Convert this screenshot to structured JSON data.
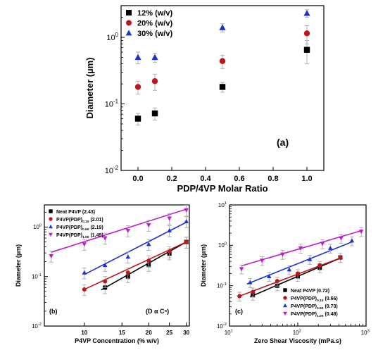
{
  "chart_data": [
    {
      "panel": "(a)",
      "type": "scatter",
      "xlabel": "PDP/4VP Molar Ratio",
      "ylabel": "Diameter (µm)",
      "xlim": [
        -0.1,
        1.1
      ],
      "ylim": [
        0.01,
        3
      ],
      "yscale": "log",
      "xticks": [
        "0.0",
        "0.2",
        "0.4",
        "0.6",
        "0.8",
        "1.0"
      ],
      "yticks": [
        "10⁻²",
        "10⁻¹",
        "10⁰"
      ],
      "legend_position": "top-left",
      "series": [
        {
          "name": "12% (w/v)",
          "marker": "square",
          "color": "#000000",
          "x": [
            0.0,
            0.1,
            0.5,
            1.0
          ],
          "y": [
            0.06,
            0.072,
            0.18,
            0.65
          ],
          "err": [
            0.012,
            0.015,
            0.03,
            0.25
          ]
        },
        {
          "name": "20% (w/v)",
          "marker": "circle",
          "color": "#c0161b",
          "x": [
            0.0,
            0.1,
            0.5,
            1.0
          ],
          "y": [
            0.18,
            0.22,
            0.44,
            1.15
          ],
          "err": [
            0.04,
            0.06,
            0.1,
            0.35
          ]
        },
        {
          "name": "30% (w/v)",
          "marker": "triangle",
          "color": "#1c34d0",
          "x": [
            0.0,
            0.1,
            0.5,
            1.0
          ],
          "y": [
            0.5,
            0.5,
            1.4,
            2.3
          ],
          "err": [
            0.1,
            0.08,
            0.2,
            0.3
          ]
        }
      ]
    },
    {
      "panel": "(b)",
      "type": "scatter",
      "xlabel": "P4VP Concentration (% w/v)",
      "ylabel": "Diameter (µm)",
      "xscale": "log",
      "yscale": "log",
      "xlim": [
        6.5,
        31
      ],
      "ylim": [
        0.01,
        2.8
      ],
      "xticks": [
        "10",
        "15",
        "20",
        "25",
        "30"
      ],
      "yticks": [
        "10⁻²",
        "10⁻¹",
        "10⁰"
      ],
      "annotation": "(D α Cⁿ)",
      "legend_position": "top-left",
      "series": [
        {
          "name": "Neat P4VP (2.43)",
          "marker": "square",
          "color": "#000000",
          "x": [
            12.5,
            16,
            20,
            25,
            30
          ],
          "y": [
            0.06,
            0.1,
            0.17,
            0.29,
            0.5
          ],
          "fit": [
            [
              12,
              0.054
            ],
            [
              30,
              0.5
            ]
          ]
        },
        {
          "name": "P4VP(PDP)0.10 (2.01)",
          "marker": "circle",
          "color": "#c0161b",
          "x": [
            10,
            12.5,
            16,
            20,
            25,
            30
          ],
          "y": [
            0.055,
            0.08,
            0.12,
            0.21,
            0.32,
            0.5
          ],
          "fit": [
            [
              10,
              0.055
            ],
            [
              30,
              0.5
            ]
          ]
        },
        {
          "name": "P4VP(PDP)0.50 (2.19)",
          "marker": "triangle",
          "color": "#1c34d0",
          "x": [
            10,
            12.5,
            16,
            20,
            25,
            30
          ],
          "y": [
            0.12,
            0.17,
            0.25,
            0.45,
            0.85,
            1.3
          ],
          "fit": [
            [
              10,
              0.11
            ],
            [
              30,
              1.25
            ]
          ]
        },
        {
          "name": "P4VP(PDP)1.00 (1.49)",
          "marker": "triangle-down",
          "color": "#c21ad1",
          "x": [
            7,
            10,
            12.5,
            16,
            20,
            25,
            30
          ],
          "y": [
            0.26,
            0.45,
            0.6,
            0.85,
            1.1,
            1.5,
            2.2
          ],
          "fit": [
            [
              7,
              0.31
            ],
            [
              30,
              2.3
            ]
          ]
        }
      ]
    },
    {
      "panel": "(c)",
      "type": "scatter",
      "xlabel": "Zero Shear Viscosity (mPa.s)",
      "ylabel": "Diameter (µm)",
      "xscale": "log",
      "yscale": "log",
      "xlim": [
        10,
        1000
      ],
      "ylim": [
        0.01,
        10
      ],
      "xticks": [
        "10¹",
        "10²",
        "10³"
      ],
      "yticks": [
        "10⁻²",
        "10⁻¹",
        "10⁰",
        "10¹"
      ],
      "legend_position": "bottom-right",
      "series": [
        {
          "name": "Neat P4VP (0.72)",
          "marker": "square",
          "color": "#000000",
          "x": [
            22,
            50,
            100,
            210,
            420
          ],
          "y": [
            0.058,
            0.1,
            0.17,
            0.28,
            0.5
          ],
          "fit": [
            [
              20,
              0.053
            ],
            [
              440,
              0.5
            ]
          ]
        },
        {
          "name": "P4VP(PDP)0.10 (0.66)",
          "marker": "circle",
          "color": "#c0161b",
          "x": [
            14,
            22,
            50,
            100,
            210,
            420
          ],
          "y": [
            0.055,
            0.07,
            0.13,
            0.2,
            0.32,
            0.5
          ],
          "fit": [
            [
              14,
              0.055
            ],
            [
              440,
              0.5
            ]
          ]
        },
        {
          "name": "P4VP(PDP)0.50 (0.73)",
          "marker": "triangle",
          "color": "#1c34d0",
          "x": [
            20,
            38,
            75,
            150,
            300,
            620
          ],
          "y": [
            0.12,
            0.17,
            0.25,
            0.45,
            0.85,
            1.3
          ],
          "fit": [
            [
              18,
              0.11
            ],
            [
              650,
              1.25
            ]
          ]
        },
        {
          "name": "P4VP(PDP)1.00 (0.48)",
          "marker": "triangle-down",
          "color": "#c21ad1",
          "x": [
            15,
            30,
            60,
            110,
            230,
            430,
            850
          ],
          "y": [
            0.26,
            0.42,
            0.6,
            0.85,
            1.1,
            1.5,
            2.2
          ],
          "fit": [
            [
              15,
              0.31
            ],
            [
              850,
              2.3
            ]
          ]
        }
      ]
    }
  ]
}
